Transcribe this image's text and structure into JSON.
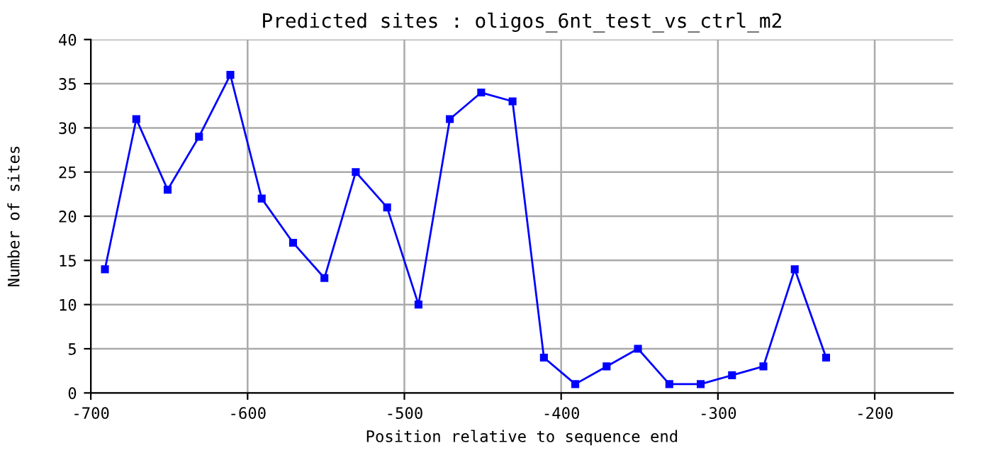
{
  "chart_data": {
    "type": "line",
    "title": "Predicted sites : oligos_6nt_test_vs_ctrl_m2",
    "xlabel": "Position relative to sequence end",
    "ylabel": "Number of sites",
    "x": [
      -691,
      -671,
      -651,
      -631,
      -611,
      -591,
      -571,
      -551,
      -531,
      -511,
      -491,
      -471,
      -451,
      -431,
      -411,
      -391,
      -371,
      -351,
      -331,
      -311,
      -291,
      -271,
      -251,
      -231
    ],
    "series": [
      {
        "color": "#0000ff",
        "values": [
          14,
          31,
          23,
          29,
          36,
          22,
          17,
          13,
          25,
          21,
          10,
          31,
          34,
          33,
          4,
          1,
          3,
          5,
          1,
          1,
          2,
          3,
          14,
          4
        ]
      }
    ],
    "xlim": [
      -700,
      -150
    ],
    "xticks": [
      -700,
      -600,
      -500,
      -400,
      -300,
      -200
    ],
    "ylim": [
      0,
      40
    ],
    "yticks": [
      0,
      5,
      10,
      15,
      20,
      25,
      30,
      35,
      40
    ],
    "grid": true,
    "marker": "square",
    "line_style": "solid",
    "legend": false
  }
}
